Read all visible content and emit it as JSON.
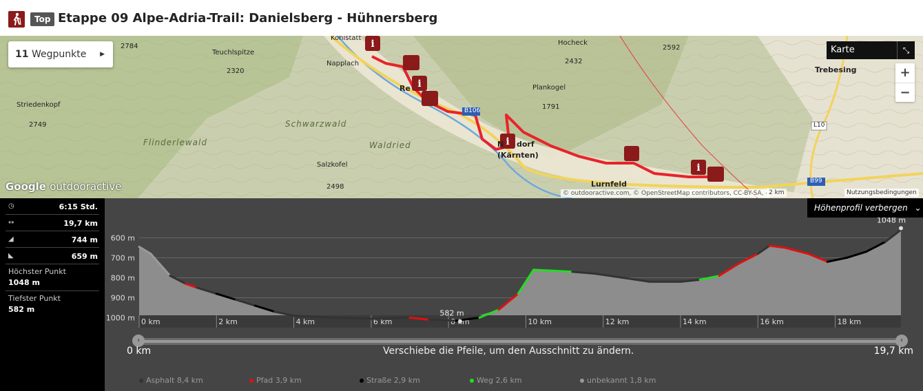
{
  "header": {
    "badge": "Top",
    "title": "Etappe 09 Alpe-Adria-Trail: Danielsberg - Hühnersberg"
  },
  "map": {
    "waypoints_count": "11",
    "waypoints_label": "Wegpunkte",
    "layer_label": "Karte",
    "zoom_in": "+",
    "zoom_out": "−",
    "logo_google": "Google",
    "logo_brand": "outdooractive",
    "attribution": "© outdooractive.com, © OpenStreetMap contributors, CC-BY-SA, -",
    "scale": "2 km",
    "terms": "Nutzungsbedingungen",
    "places": [
      {
        "name": "Kohlstatt",
        "style": "normal"
      },
      {
        "name": "2784",
        "style": "normal"
      },
      {
        "name": "Teuchlspitze",
        "style": "normal"
      },
      {
        "name": "2320",
        "style": "normal"
      },
      {
        "name": "Napplach",
        "style": "normal"
      },
      {
        "name": "Striedenkopf",
        "style": "normal"
      },
      {
        "name": "2749",
        "style": "normal"
      },
      {
        "name": "Flinderlewald",
        "style": "area"
      },
      {
        "name": "Schwarzwald",
        "style": "area"
      },
      {
        "name": "Waldried",
        "style": "area"
      },
      {
        "name": "Salzkofel",
        "style": "normal"
      },
      {
        "name": "2498",
        "style": "normal"
      },
      {
        "name": "Hocheck",
        "style": "normal"
      },
      {
        "name": "2432",
        "style": "normal"
      },
      {
        "name": "2592",
        "style": "normal"
      },
      {
        "name": "Plankogel",
        "style": "normal"
      },
      {
        "name": "1791",
        "style": "normal"
      },
      {
        "name": "Trebesing",
        "style": "big"
      },
      {
        "name": "Re",
        "style": "big"
      },
      {
        "name": "N",
        "style": "big"
      },
      {
        "name": "dorf",
        "style": "big"
      },
      {
        "name": "(Kärnten)",
        "style": "big"
      },
      {
        "name": "Lurnfeld",
        "style": "big"
      },
      {
        "name": "B106",
        "style": "road"
      },
      {
        "name": "L10",
        "style": "road"
      },
      {
        "name": "B99",
        "style": "road"
      }
    ]
  },
  "stats": {
    "duration": "6:15 Std.",
    "distance": "19,7 km",
    "ascent": "744 m",
    "descent": "659 m",
    "highest_label": "Höchster Punkt",
    "highest_value": "1048 m",
    "lowest_label": "Tiefster Punkt",
    "lowest_value": "582 m",
    "icons": {
      "duration": "clock-icon",
      "distance": "distance-icon",
      "ascent": "ascent-icon",
      "descent": "descent-icon"
    }
  },
  "profile": {
    "hide_label": "Höhenprofil verbergen",
    "max_label": "1048 m",
    "min_label": "582 m",
    "y_ticks": [
      "1000 m",
      "900 m",
      "800 m",
      "700 m",
      "600 m"
    ],
    "x_ticks": [
      "0 km",
      "2 km",
      "4 km",
      "6 km",
      "8 km",
      "10 km",
      "12 km",
      "14 km",
      "16 km",
      "18 km"
    ],
    "slider_start": "0 km",
    "slider_end": "19,7 km",
    "hint": "Verschiebe die Pfeile, um den Ausschnitt zu ändern.",
    "legend": [
      {
        "label": "Asphalt 8,4 km",
        "color": "#333333"
      },
      {
        "label": "Pfad 3,9 km",
        "color": "#e01010"
      },
      {
        "label": "Straße 2,9 km",
        "color": "#000000"
      },
      {
        "label": "Weg 2,6 km",
        "color": "#22dd22"
      },
      {
        "label": "unbekannt 1,8 km",
        "color": "#999999"
      }
    ]
  },
  "chart_data": {
    "type": "area",
    "xlabel": "",
    "ylabel": "",
    "xlim": [
      0,
      19.7
    ],
    "ylim": [
      550,
      1060
    ],
    "x_ticks": [
      0,
      2,
      4,
      6,
      8,
      10,
      12,
      14,
      16,
      18
    ],
    "y_ticks": [
      600,
      700,
      800,
      900,
      1000
    ],
    "series": [
      {
        "x": [
          0,
          0.3,
          0.8,
          1.2,
          1.5,
          2.0,
          2.5,
          3.0,
          3.5,
          4.0,
          5.0,
          6.0,
          7.0,
          7.5,
          8.2,
          8.8,
          9.3,
          9.8,
          10.2,
          10.7,
          11.2,
          11.8,
          12.5,
          13.2,
          14.0,
          14.5,
          15.0,
          15.5,
          16.0,
          16.3,
          16.7,
          17.3,
          17.8,
          18.3,
          18.8,
          19.3,
          19.7
        ],
        "y": [
          955,
          920,
          810,
          770,
          750,
          720,
          690,
          660,
          630,
          610,
          600,
          595,
          600,
          590,
          585,
          600,
          640,
          720,
          840,
          835,
          830,
          820,
          800,
          780,
          780,
          790,
          810,
          870,
          920,
          960,
          950,
          920,
          880,
          900,
          930,
          980,
          1040
        ]
      }
    ],
    "markers": [
      {
        "label": "582 m",
        "x": 8.3,
        "y": 582
      },
      {
        "label": "1048 m",
        "x": 19.7,
        "y": 1048
      }
    ]
  }
}
